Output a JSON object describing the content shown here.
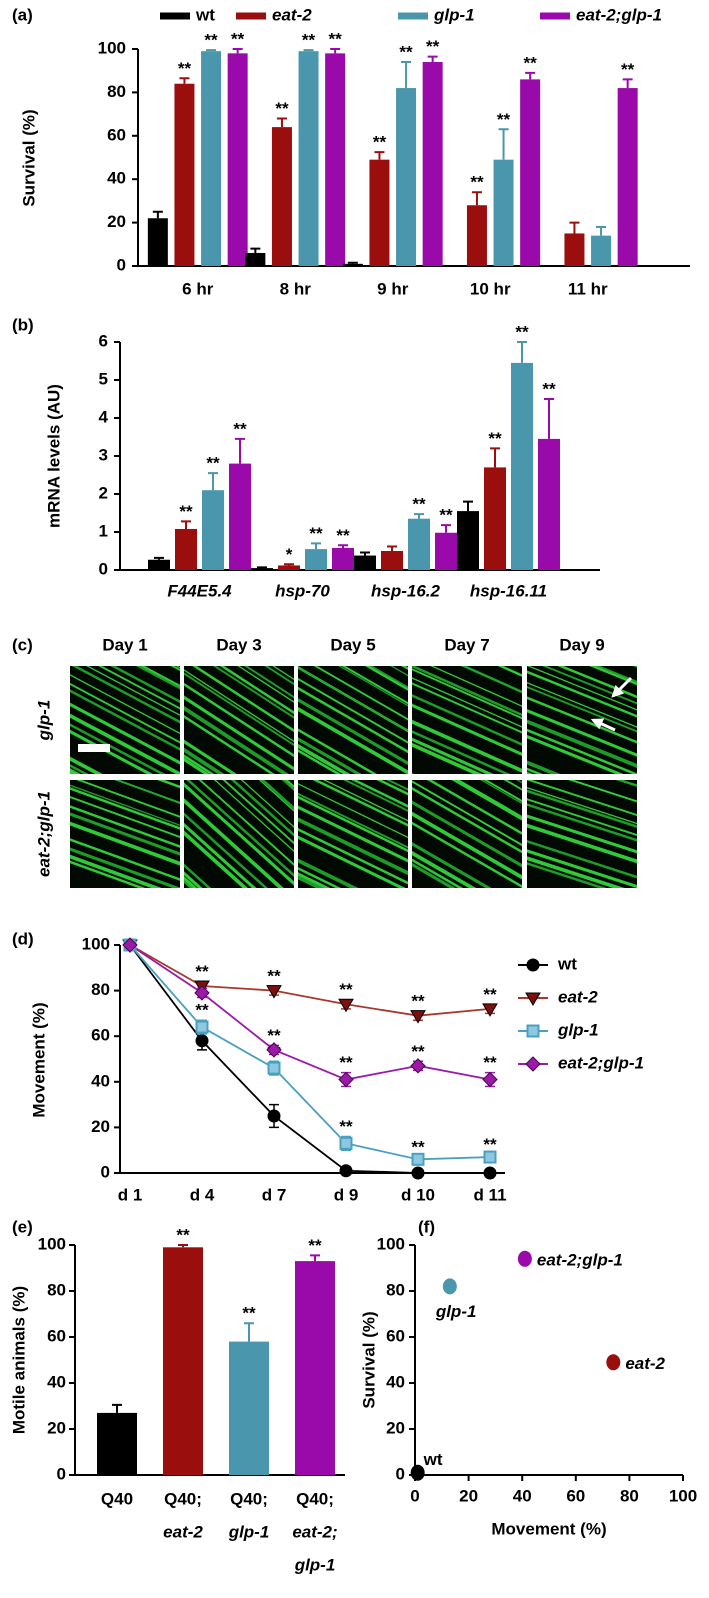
{
  "chart_data": [
    {
      "type": "bar",
      "label": "(a)",
      "y_label": "Survival (%)",
      "legend": "top",
      "categories": [
        "6 hr",
        "8 hr",
        "9 hr",
        "10 hr",
        "11 hr"
      ],
      "ylim": [
        0,
        100
      ],
      "yticks": [
        0,
        20,
        40,
        60,
        80,
        100
      ],
      "series": [
        {
          "name": "wt",
          "color": "#000000",
          "values": [
            22,
            6,
            1,
            0,
            0
          ],
          "errors": [
            3,
            2,
            0.5,
            0,
            0
          ]
        },
        {
          "name": "eat-2",
          "color": "#9b0e0e",
          "values": [
            84,
            64,
            49,
            28,
            15
          ],
          "errors": [
            2.5,
            4,
            3.5,
            6,
            5
          ],
          "significance": [
            "**",
            "**",
            "**",
            "**",
            null
          ]
        },
        {
          "name": "glp-1",
          "color": "#4a96ad",
          "values": [
            99,
            99,
            82,
            49,
            14
          ],
          "errors": [
            0.5,
            0.5,
            12,
            14,
            4
          ],
          "significance": [
            "**",
            "**",
            "**",
            "**",
            null
          ]
        },
        {
          "name": "eat-2;glp-1",
          "color": "#9a0aaa",
          "values": [
            98,
            98,
            94,
            86,
            82
          ],
          "errors": [
            2,
            2,
            2.5,
            3,
            4
          ],
          "significance": [
            "**",
            "**",
            "**",
            "**",
            "**"
          ]
        }
      ]
    },
    {
      "type": "bar",
      "label": "(b)",
      "y_label": "mRNA levels (AU)",
      "categories": [
        "F44E5.4",
        "hsp-70",
        "hsp-16.2",
        "hsp-16.11"
      ],
      "ylim": [
        0,
        6
      ],
      "yticks": [
        0,
        1,
        2,
        3,
        4,
        5,
        6
      ],
      "series": [
        {
          "name": "wt",
          "color": "#000000",
          "values": [
            0.27,
            0.05,
            0.38,
            1.55
          ],
          "errors": [
            0.05,
            0.02,
            0.08,
            0.25
          ]
        },
        {
          "name": "eat-2",
          "color": "#9b0e0e",
          "values": [
            1.08,
            0.12,
            0.5,
            2.7
          ],
          "errors": [
            0.2,
            0.03,
            0.12,
            0.5
          ],
          "significance": [
            "**",
            "*",
            null,
            "**"
          ]
        },
        {
          "name": "glp-1",
          "color": "#4a96ad",
          "values": [
            2.1,
            0.55,
            1.35,
            5.45
          ],
          "errors": [
            0.45,
            0.15,
            0.12,
            0.55
          ],
          "significance": [
            "**",
            "**",
            "**",
            "**"
          ]
        },
        {
          "name": "eat-2;glp-1",
          "color": "#9a0aaa",
          "values": [
            2.8,
            0.58,
            0.98,
            3.45
          ],
          "errors": [
            0.65,
            0.07,
            0.2,
            1.05
          ],
          "significance": [
            "**",
            "**",
            "**",
            "**"
          ]
        }
      ]
    },
    {
      "type": "image",
      "label": "(c)",
      "columns": [
        "Day 1",
        "Day 3",
        "Day 5",
        "Day 7",
        "Day 9"
      ],
      "rows": [
        "glp-1",
        "eat-2;glp-1"
      ]
    },
    {
      "type": "line",
      "label": "(d)",
      "y_label": "Movement (%)",
      "legend": "right",
      "categories": [
        "d 1",
        "d 4",
        "d 7",
        "d 9",
        "d 10",
        "d 11"
      ],
      "ylim": [
        0,
        100
      ],
      "yticks": [
        0,
        20,
        40,
        60,
        80,
        100
      ],
      "series": [
        {
          "name": "wt",
          "color": "#000000",
          "marker": "circle",
          "values": [
            100,
            58,
            25,
            1,
            0,
            0
          ],
          "errors": [
            0,
            4,
            5,
            1,
            0,
            0
          ]
        },
        {
          "name": "eat-2",
          "color": "#a8382c",
          "marker": "triangle-down",
          "values": [
            100,
            82,
            80,
            74,
            69,
            72
          ],
          "errors": [
            0,
            2,
            2,
            2,
            2,
            2
          ],
          "significance": [
            null,
            "**",
            "**",
            "**",
            "**",
            "**"
          ]
        },
        {
          "name": "glp-1",
          "color": "#4aa0c0",
          "marker": "square",
          "values": [
            100,
            64,
            46,
            13,
            6,
            7
          ],
          "errors": [
            0,
            3,
            3,
            3,
            1,
            1
          ],
          "significance": [
            null,
            "**",
            "**",
            "**",
            "**",
            "**"
          ]
        },
        {
          "name": "eat-2;glp-1",
          "color": "#9b1aa8",
          "marker": "diamond",
          "values": [
            100,
            79,
            54,
            41,
            47,
            41
          ],
          "errors": [
            0,
            2,
            2,
            3,
            2,
            3
          ],
          "significance": [
            null,
            null,
            "**",
            "**",
            "**",
            "**"
          ]
        }
      ]
    },
    {
      "type": "bar",
      "label": "(e)",
      "y_label": "Motile animals (%)",
      "categories": [
        [
          "Q40"
        ],
        [
          "Q40;",
          "eat-2"
        ],
        [
          "Q40;",
          "glp-1"
        ],
        [
          "Q40;",
          "eat-2;",
          "glp-1"
        ]
      ],
      "values": [
        27,
        99,
        58,
        93
      ],
      "errors": [
        3.5,
        1,
        8,
        2.5
      ],
      "significance": [
        null,
        "**",
        "**",
        "**"
      ],
      "colors": [
        "#000000",
        "#9b0e0e",
        "#4a96ad",
        "#9a0aaa"
      ],
      "ylim": [
        0,
        100
      ],
      "yticks": [
        0,
        20,
        40,
        60,
        80,
        100
      ]
    },
    {
      "type": "scatter",
      "label": "(f)",
      "x_label": "Movement (%)",
      "y_label": "Survival (%)",
      "xlim": [
        0,
        100
      ],
      "xticks": [
        0,
        20,
        40,
        60,
        80,
        100
      ],
      "ylim": [
        0,
        100
      ],
      "yticks": [
        0,
        20,
        40,
        60,
        80,
        100
      ],
      "series": [
        {
          "name": "wt",
          "color": "#000000",
          "x": [
            1
          ],
          "y": [
            1
          ]
        },
        {
          "name": "glp-1",
          "color": "#4a96ad",
          "x": [
            13
          ],
          "y": [
            82
          ]
        },
        {
          "name": "eat-2",
          "color": "#9b0e0e",
          "x": [
            74
          ],
          "y": [
            49
          ]
        },
        {
          "name": "eat-2;glp-1",
          "color": "#9a0aaa",
          "x": [
            41
          ],
          "y": [
            94
          ]
        }
      ]
    }
  ]
}
